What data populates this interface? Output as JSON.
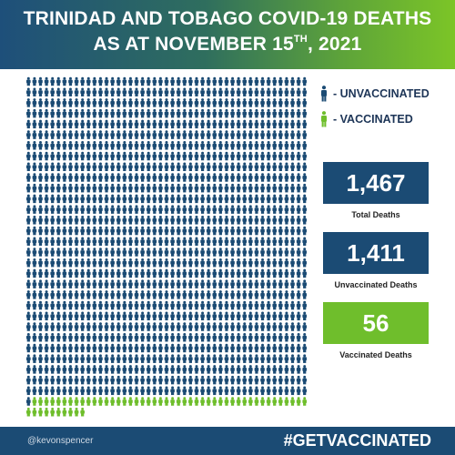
{
  "header": {
    "line1": "TRINIDAD AND TOBAGO COVID-19 DEATHS",
    "line2_prefix": "AS AT NOVEMBER 15",
    "line2_sup": "TH",
    "line2_suffix": ", 2021"
  },
  "legend": {
    "unvaccinated_label": "- UNVACCINATED",
    "vaccinated_label": "- VACCINATED"
  },
  "stats": {
    "total_value": "1,467",
    "total_label": "Total Deaths",
    "unvaccinated_value": "1,411",
    "unvaccinated_label": "Unvaccinated Deaths",
    "vaccinated_value": "56",
    "vaccinated_label": "Vaccinated Deaths"
  },
  "footer": {
    "handle": "@kevonspencer",
    "hashtag": "#GETVACCINATED"
  },
  "colors": {
    "unvaccinated": "#1b4b74",
    "vaccinated": "#6fbe2c"
  },
  "chart_data": {
    "type": "pictogram",
    "title": "TRINIDAD AND TOBAGO COVID-19 DEATHS AS AT NOVEMBER 15TH, 2021",
    "icon": "person-icon",
    "series": [
      {
        "name": "UNVACCINATED",
        "value": 1411,
        "color": "#1b4b74"
      },
      {
        "name": "VACCINATED",
        "value": 56,
        "color": "#6fbe2c"
      }
    ],
    "total": 1467
  }
}
